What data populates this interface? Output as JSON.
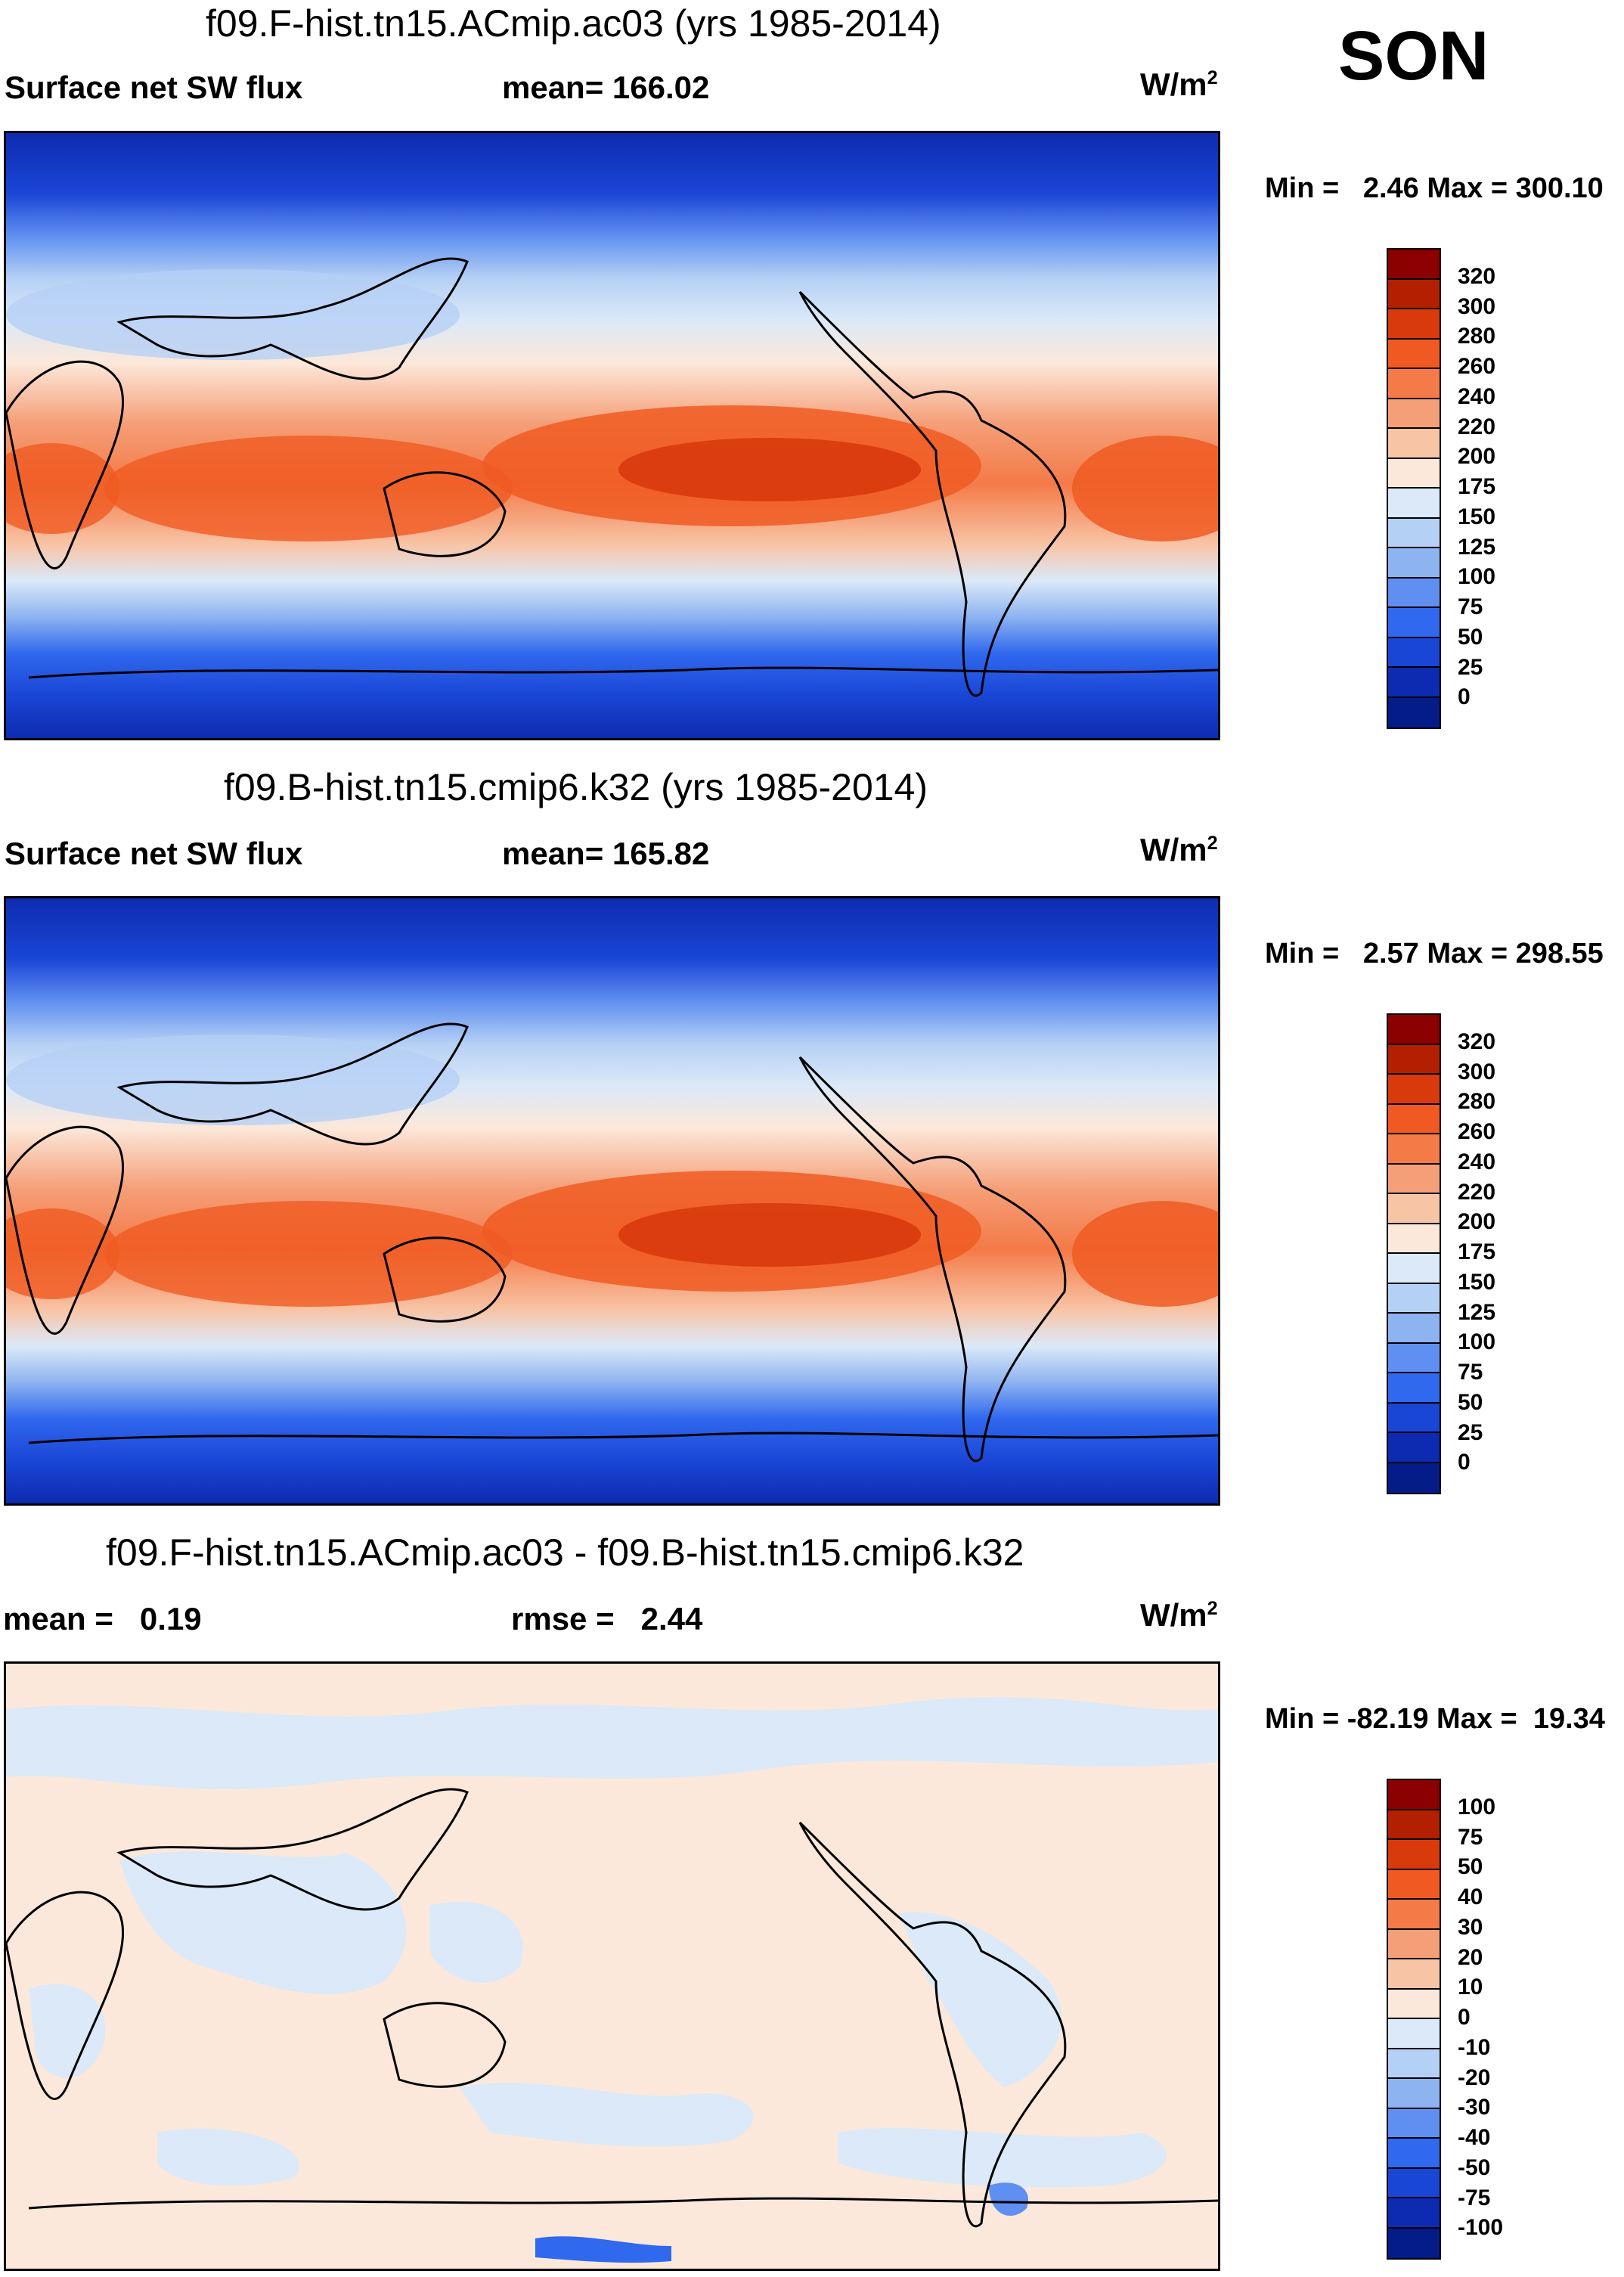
{
  "season": "SON",
  "units": "W/m",
  "units_sup": "2",
  "panels": [
    {
      "title": "f09.F-hist.tn15.ACmip.ac03 (yrs 1985-2014)",
      "left_label": "Surface net SW flux",
      "center_label": "mean= 166.02",
      "minmax": "Min =   2.46 Max = 300.10"
    },
    {
      "title": "f09.B-hist.tn15.cmip6.k32 (yrs 1985-2014)",
      "left_label": "Surface net SW flux",
      "center_label": "mean= 165.82",
      "minmax": "Min =   2.57 Max = 298.55"
    },
    {
      "title": "f09.F-hist.tn15.ACmip.ac03 - f09.B-hist.tn15.cmip6.k32",
      "left_label": "mean =   0.19",
      "center_label": "rmse =   2.44",
      "minmax": "Min = -82.19 Max =  19.34"
    }
  ],
  "chart_data": [
    {
      "type": "heatmap",
      "title": "f09.F-hist.tn15.ACmip.ac03 (yrs 1985-2014)",
      "variable": "Surface net SW flux",
      "mean": 166.02,
      "min": 2.46,
      "max": 300.1,
      "units": "W/m2",
      "colorbar_levels": [
        320,
        300,
        280,
        260,
        240,
        220,
        200,
        175,
        150,
        125,
        100,
        75,
        50,
        25,
        0
      ],
      "colorbar_colors": [
        "#8b0000",
        "#b22000",
        "#d83a0c",
        "#f05a22",
        "#f47a48",
        "#f59f78",
        "#f8c4a6",
        "#fce8da",
        "#dbe9f8",
        "#b5d0f5",
        "#8db3f0",
        "#5f8ff0",
        "#3068ee",
        "#1a46d6",
        "#0d2bb0",
        "#041c88"
      ]
    },
    {
      "type": "heatmap",
      "title": "f09.B-hist.tn15.cmip6.k32 (yrs 1985-2014)",
      "variable": "Surface net SW flux",
      "mean": 165.82,
      "min": 2.57,
      "max": 298.55,
      "units": "W/m2",
      "colorbar_levels": [
        320,
        300,
        280,
        260,
        240,
        220,
        200,
        175,
        150,
        125,
        100,
        75,
        50,
        25,
        0
      ],
      "colorbar_colors": [
        "#8b0000",
        "#b22000",
        "#d83a0c",
        "#f05a22",
        "#f47a48",
        "#f59f78",
        "#f8c4a6",
        "#fce8da",
        "#dbe9f8",
        "#b5d0f5",
        "#8db3f0",
        "#5f8ff0",
        "#3068ee",
        "#1a46d6",
        "#0d2bb0",
        "#041c88"
      ]
    },
    {
      "type": "heatmap",
      "title": "f09.F-hist.tn15.ACmip.ac03 - f09.B-hist.tn15.cmip6.k32",
      "variable": "difference",
      "mean": 0.19,
      "rmse": 2.44,
      "min": -82.19,
      "max": 19.34,
      "units": "W/m2",
      "colorbar_levels": [
        100,
        75,
        50,
        40,
        30,
        20,
        10,
        0,
        -10,
        -20,
        -30,
        -40,
        -50,
        -75,
        -100
      ],
      "colorbar_colors": [
        "#8b0000",
        "#b22000",
        "#d83a0c",
        "#f05a22",
        "#f47a48",
        "#f59f78",
        "#f8c4a6",
        "#fce8da",
        "#dbe9f8",
        "#b5d0f5",
        "#8db3f0",
        "#5f8ff0",
        "#3068ee",
        "#1a46d6",
        "#0d2bb0",
        "#041c88"
      ]
    }
  ]
}
